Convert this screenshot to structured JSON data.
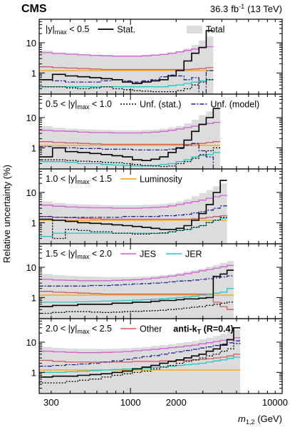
{
  "chart_data": {
    "type": "step",
    "header": {
      "experiment": "CMS",
      "lumi": "36.3",
      "lumi_unit": "fb",
      "lumi_exp": "-1",
      "energy": "(13 TeV)"
    },
    "ylabel": "Relative uncertainty (%)",
    "xlabel_main": "m",
    "xlabel_sub": "1,2",
    "xlabel_unit": "(GeV)",
    "x_scale": "log",
    "y_scale": "log",
    "xlim": [
      250,
      10000
    ],
    "ylim": [
      0.2,
      60
    ],
    "x_tick_labels": [
      {
        "value": 300,
        "label": "300"
      },
      {
        "value": 1000,
        "label": "1000"
      },
      {
        "value": 2000,
        "label": "2000"
      },
      {
        "value": 10000,
        "label": "10000"
      }
    ],
    "y_tick_labels": [
      {
        "value": 1,
        "label": "1"
      },
      {
        "value": 10,
        "label": "10"
      }
    ],
    "bin_edges": [
      249,
      306,
      372,
      449,
      539,
      640,
      756,
      885,
      1029,
      1189,
      1365,
      1558,
      1769,
      2000,
      2252,
      2528,
      2828,
      3156,
      3515,
      3904,
      4327,
      4787,
      5286,
      5827,
      6412,
      7043,
      7723,
      8453,
      9236
    ],
    "series_styles": [
      {
        "key": "total",
        "name": "Total",
        "color": "#dcdcdc",
        "kind": "fill"
      },
      {
        "key": "stat",
        "name": "Stat.",
        "color": "#000000",
        "dash": ""
      },
      {
        "key": "unf_stat",
        "name": "Unf. (stat.)",
        "color": "#000000",
        "dash": "2,2"
      },
      {
        "key": "unf_model",
        "name": "Unf. (model)",
        "color": "#1f1f9a",
        "dash": "6,2,2,2"
      },
      {
        "key": "lumi",
        "name": "Luminosity",
        "color": "#f5a000",
        "dash": ""
      },
      {
        "key": "jes",
        "name": "JES",
        "color": "#d45fd4",
        "dash": ""
      },
      {
        "key": "jer",
        "name": "JER",
        "color": "#1ec8c8",
        "dash": ""
      },
      {
        "key": "other",
        "name": "Other",
        "color": "#d05a5a",
        "dash": ""
      }
    ],
    "panels": [
      {
        "label_pre": "|y|",
        "label_sub": "max",
        "label_post": " < 0.5",
        "legend": [
          {
            "series": "stat",
            "label": "Stat."
          },
          {
            "series": "total",
            "label": "Total"
          }
        ],
        "nbins": 18,
        "series": {
          "total": [
            5.5,
            4.8,
            4.5,
            4.2,
            4.0,
            3.9,
            3.8,
            3.8,
            3.8,
            3.9,
            4.0,
            4.3,
            4.7,
            5.3,
            6.5,
            8.5,
            12,
            16
          ],
          "jes": [
            4.7,
            4.4,
            4.2,
            4.0,
            3.8,
            3.7,
            3.6,
            3.6,
            3.6,
            3.7,
            3.9,
            4.1,
            4.5,
            5.0,
            5.6,
            6.2,
            6.8,
            7.4
          ],
          "other": [
            1.6,
            1.5,
            1.45,
            1.4,
            1.35,
            1.3,
            1.3,
            1.3,
            1.3,
            1.3,
            1.3,
            1.3,
            1.3,
            1.3,
            1.3,
            1.35,
            1.4,
            1.5
          ],
          "lumi": [
            1.2,
            1.2,
            1.2,
            1.2,
            1.2,
            1.2,
            1.2,
            1.2,
            1.2,
            1.2,
            1.2,
            1.2,
            1.2,
            1.2,
            1.2,
            1.2,
            1.2,
            1.2
          ],
          "stat": [
            0.6,
            0.9,
            0.8,
            0.75,
            0.7,
            0.65,
            0.6,
            0.5,
            0.45,
            0.5,
            0.55,
            0.6,
            0.8,
            1.2,
            2.5,
            4.5,
            7,
            25
          ],
          "unf_stat": [
            0.35,
            0.35,
            0.32,
            0.3,
            0.32,
            0.35,
            0.3,
            0.28,
            0.26,
            0.25,
            0.24,
            0.24,
            0.24,
            0.26,
            0.3,
            0.4,
            0.5,
            0.6
          ],
          "unf_model": [
            0.6,
            0.55,
            0.5,
            0.5,
            0.5,
            0.55,
            0.6,
            0.55,
            0.5,
            0.55,
            0.6,
            0.75,
            0.85,
            0.8,
            0.6,
            0.7,
            0.2,
            1.2
          ],
          "jer": [
            0.35,
            0.35,
            0.35,
            0.35,
            0.35,
            0.35,
            0.35,
            0.35,
            0.35,
            0.35,
            0.35,
            0.35,
            0.38,
            0.4,
            0.45,
            0.5,
            0.55,
            0.6
          ]
        }
      },
      {
        "label_pre": "0.5 < |y|",
        "label_sub": "max",
        "label_post": " < 1.0",
        "legend": [
          {
            "series": "unf_stat",
            "label": "Unf. (stat.)"
          },
          {
            "series": "unf_model",
            "label": "Unf. (model)"
          }
        ],
        "nbins": 19,
        "series": {
          "total": [
            5.2,
            4.6,
            4.3,
            4.1,
            4.0,
            3.9,
            3.8,
            3.8,
            3.8,
            3.9,
            4.0,
            4.3,
            4.7,
            5.3,
            6.5,
            8.5,
            12,
            16,
            20
          ],
          "jes": [
            3.8,
            3.6,
            3.5,
            3.3,
            3.2,
            3.2,
            3.1,
            3.1,
            3.1,
            3.2,
            3.3,
            3.5,
            3.8,
            4.2,
            4.7,
            5.2,
            5.8,
            6.4,
            7.0
          ],
          "other": [
            1.6,
            1.5,
            1.45,
            1.4,
            1.35,
            1.3,
            1.3,
            1.3,
            1.3,
            1.3,
            1.3,
            1.3,
            1.3,
            1.3,
            1.3,
            1.35,
            1.4,
            1.5,
            1.6
          ],
          "lumi": [
            1.2,
            1.2,
            1.2,
            1.2,
            1.2,
            1.2,
            1.2,
            1.2,
            1.2,
            1.2,
            1.2,
            1.2,
            1.2,
            1.2,
            1.2,
            1.2,
            1.2,
            1.2,
            1.2
          ],
          "stat": [
            0.5,
            1.0,
            0.75,
            0.7,
            0.65,
            0.6,
            0.55,
            0.5,
            0.4,
            0.38,
            0.42,
            0.5,
            0.7,
            1.0,
            1.8,
            3.5,
            6,
            10,
            20
          ],
          "unf_stat": [
            0.4,
            0.4,
            0.38,
            0.36,
            0.35,
            0.33,
            0.32,
            0.3,
            0.28,
            0.26,
            0.25,
            0.24,
            0.25,
            0.3,
            0.35,
            0.45,
            0.6,
            0.8,
            1.0
          ],
          "unf_model": [
            1.1,
            1.0,
            1.0,
            0.95,
            0.95,
            0.9,
            0.9,
            0.9,
            0.85,
            0.85,
            0.85,
            0.85,
            0.9,
            0.95,
            1.2,
            1.4,
            0.8,
            0.5,
            0.2
          ],
          "jer": [
            0.35,
            0.35,
            0.33,
            0.3,
            0.3,
            0.28,
            0.27,
            0.26,
            0.25,
            0.25,
            0.26,
            0.28,
            0.3,
            0.35,
            0.4,
            0.5,
            0.55,
            0.6,
            0.7
          ]
        }
      },
      {
        "label_pre": "1.0 < |y|",
        "label_sub": "max",
        "label_post": " < 1.5",
        "legend": [
          {
            "series": "lumi",
            "label": "Luminosity"
          }
        ],
        "nbins": 20,
        "series": {
          "total": [
            5.0,
            4.5,
            4.2,
            4.0,
            3.9,
            3.8,
            3.8,
            3.8,
            3.8,
            3.9,
            4.0,
            4.2,
            4.5,
            5.0,
            6.0,
            7.5,
            9.5,
            12,
            16,
            20
          ],
          "jes": [
            3.8,
            3.5,
            3.3,
            3.2,
            3.1,
            3.1,
            3.0,
            3.0,
            3.0,
            3.1,
            3.2,
            3.3,
            3.6,
            4.0,
            4.5,
            5.0,
            5.6,
            6.4,
            7.2,
            8.0
          ],
          "other": [
            1.6,
            1.5,
            1.45,
            1.4,
            1.35,
            1.3,
            1.3,
            1.3,
            1.3,
            1.3,
            1.3,
            1.3,
            1.3,
            1.3,
            1.3,
            1.35,
            1.4,
            1.5,
            1.6,
            1.7
          ],
          "lumi": [
            1.2,
            1.2,
            1.2,
            1.2,
            1.2,
            1.2,
            1.2,
            1.2,
            1.2,
            1.2,
            1.2,
            1.2,
            1.2,
            1.2,
            1.2,
            1.2,
            1.2,
            1.2,
            1.2,
            1.2
          ],
          "stat": [
            1.3,
            1.2,
            1.1,
            1.0,
            0.95,
            0.9,
            0.85,
            0.8,
            0.75,
            0.7,
            0.65,
            0.6,
            0.6,
            0.65,
            0.8,
            1.2,
            2,
            4,
            10,
            25
          ],
          "unf_stat": [
            1.3,
            0.3,
            0.6,
            0.55,
            0.5,
            0.5,
            0.45,
            0.45,
            0.42,
            0.42,
            0.44,
            0.46,
            0.5,
            0.55,
            0.6,
            0.7,
            0.8,
            1.0,
            1.2,
            1.5
          ],
          "unf_model": [
            1.6,
            1.5,
            1.5,
            1.5,
            1.5,
            1.5,
            1.5,
            1.6,
            1.6,
            1.6,
            1.6,
            1.7,
            1.7,
            1.8,
            1.9,
            2.1,
            2.3,
            2.6,
            3.0,
            3.6
          ],
          "jer": [
            0.35,
            0.45,
            0.45,
            0.45,
            0.45,
            0.45,
            0.45,
            0.45,
            0.45,
            0.45,
            0.45,
            0.45,
            0.5,
            0.55,
            0.6,
            0.7,
            0.8,
            1.0,
            1.2,
            1.4
          ]
        }
      },
      {
        "label_pre": "1.5 < |y|",
        "label_sub": "max",
        "label_post": " < 2.0",
        "legend": [
          {
            "series": "jes",
            "label": "JES"
          },
          {
            "series": "jer",
            "label": "JER"
          }
        ],
        "nbins": 21,
        "series": {
          "total": [
            6.0,
            5.5,
            5.2,
            5.0,
            4.9,
            4.8,
            4.8,
            4.8,
            4.9,
            5.0,
            5.2,
            5.5,
            5.9,
            6.5,
            7.2,
            8.0,
            9.0,
            10.5,
            12,
            14,
            16
          ],
          "jes": [
            4.0,
            3.8,
            3.7,
            3.6,
            3.6,
            3.6,
            3.7,
            3.8,
            3.9,
            4.1,
            4.4,
            4.7,
            5.1,
            5.6,
            6.2,
            6.9,
            7.7,
            8.5,
            9.4,
            10.4,
            11.5
          ],
          "other": [
            1.6,
            1.5,
            1.45,
            1.4,
            1.35,
            1.3,
            1.3,
            1.3,
            1.3,
            1.3,
            1.3,
            1.3,
            1.3,
            1.3,
            1.3,
            1.3,
            1.3,
            1.3,
            0.7,
            0.5,
            0.4
          ],
          "lumi": [
            1.2,
            1.2,
            1.2,
            1.2,
            1.2,
            1.2,
            1.2,
            1.2,
            1.2,
            1.2,
            1.2,
            1.2,
            1.2,
            1.2,
            1.2,
            1.2,
            1.2,
            1.2,
            1.2,
            1.2,
            1.2
          ],
          "stat": [
            0.5,
            0.55,
            0.55,
            0.6,
            0.6,
            0.6,
            0.65,
            0.65,
            0.7,
            0.7,
            0.75,
            0.8,
            0.8,
            0.85,
            0.9,
            0.9,
            0.95,
            1.0,
            5,
            6,
            8
          ],
          "unf_stat": [
            0.3,
            0.32,
            0.34,
            0.34,
            0.33,
            0.32,
            0.33,
            0.34,
            0.35,
            0.36,
            0.37,
            0.38,
            0.4,
            0.42,
            0.45,
            0.48,
            0.5,
            0.55,
            0.6,
            0.65,
            0.7
          ],
          "unf_model": [
            2.4,
            2.4,
            2.4,
            2.4,
            2.5,
            2.5,
            2.6,
            2.7,
            2.8,
            2.9,
            3.0,
            3.1,
            3.3,
            3.5,
            3.6,
            3.8,
            4.0,
            4.2,
            4.5,
            4.8,
            5.2
          ],
          "jer": [
            0.7,
            0.7,
            0.7,
            0.72,
            0.74,
            0.76,
            0.78,
            0.8,
            0.82,
            0.85,
            0.88,
            0.9,
            0.95,
            1.0,
            1.05,
            1.1,
            1.2,
            1.3,
            1.4,
            1.5,
            2.0
          ]
        }
      },
      {
        "label_pre": "2.0 < |y|",
        "label_sub": "max",
        "label_post": " < 2.5",
        "legend": [
          {
            "series": "other",
            "label": "Other"
          }
        ],
        "tag_main": "anti-k",
        "tag_sub": "T",
        "tag_post": " (R=0.4)",
        "nbins": 22,
        "series": {
          "total": [
            7.0,
            6.5,
            6.2,
            6.0,
            6.0,
            6.0,
            6.1,
            6.3,
            6.6,
            7.0,
            7.5,
            8.0,
            8.6,
            9.3,
            10,
            11,
            12.5,
            14,
            16,
            19,
            22,
            26
          ],
          "jes": [
            5.0,
            4.8,
            4.6,
            4.5,
            4.5,
            4.6,
            4.7,
            4.9,
            5.2,
            5.5,
            5.8,
            6.2,
            6.6,
            7.0,
            7.5,
            8.0,
            8.8,
            9.6,
            10.5,
            11.5,
            12.5,
            14
          ],
          "other": [
            2.5,
            2.3,
            2.2,
            2.2,
            2.2,
            2.2,
            2.2,
            2.2,
            2.3,
            2.3,
            2.3,
            2.4,
            2.4,
            2.5,
            2.5,
            2.6,
            2.7,
            2.8,
            3.0,
            3.2,
            3.5,
            4.0
          ],
          "lumi": [
            1.2,
            1.2,
            1.2,
            1.2,
            1.2,
            1.2,
            1.2,
            1.2,
            1.2,
            1.2,
            1.2,
            1.2,
            1.2,
            1.2,
            1.2,
            1.2,
            1.2,
            1.2,
            1.2,
            1.2,
            1.2,
            1.2
          ],
          "stat": [
            0.7,
            0.75,
            0.75,
            0.8,
            0.85,
            0.9,
            1.0,
            1.1,
            1.3,
            1.5,
            1.7,
            2.0,
            2.3,
            2.6,
            3.0,
            3.5,
            4.0,
            5.0,
            6.0,
            8.0,
            12,
            30
          ],
          "unf_stat": [
            0.45,
            0.45,
            0.5,
            0.55,
            0.6,
            0.7,
            0.8,
            0.9,
            1.0,
            1.1,
            1.3,
            1.5,
            1.7,
            2.0,
            2.3,
            2.6,
            3.0,
            3.5,
            4.0,
            5.0,
            6.0,
            9.0
          ],
          "unf_model": [
            1.6,
            1.7,
            1.8,
            1.9,
            2.0,
            2.2,
            2.4,
            2.7,
            3.0,
            3.3,
            3.6,
            4.0,
            4.4,
            4.8,
            5.3,
            5.8,
            6.4,
            7.0,
            7.8,
            8.6,
            9.5,
            11
          ],
          "jer": [
            1.0,
            1.0,
            1.05,
            1.1,
            1.15,
            1.2,
            1.25,
            1.3,
            1.35,
            1.4,
            1.45,
            1.5,
            1.6,
            1.7,
            1.8,
            1.9,
            2.0,
            2.2,
            2.4,
            2.6,
            2.9,
            3.2
          ]
        }
      }
    ]
  }
}
